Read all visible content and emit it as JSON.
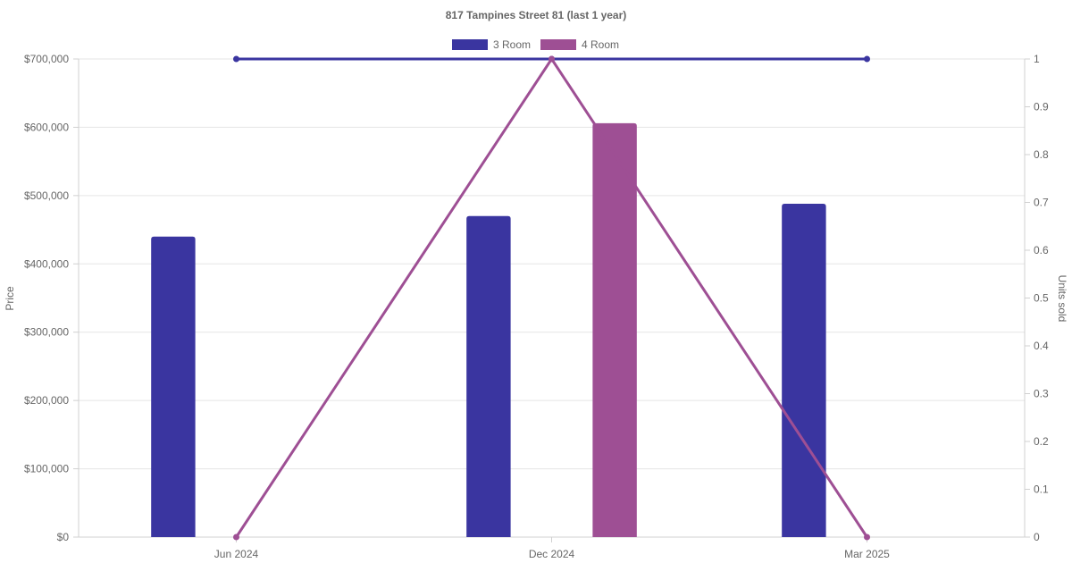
{
  "chart_data": {
    "type": "bar",
    "title": "817 Tampines Street 81 (last 1 year)",
    "categories": [
      "Jun 2024",
      "Dec 2024",
      "Mar 2025"
    ],
    "y_left": {
      "label": "Price",
      "min": 0,
      "max": 700000,
      "ticks": [
        "$0",
        "$100,000",
        "$200,000",
        "$300,000",
        "$400,000",
        "$500,000",
        "$600,000",
        "$700,000"
      ]
    },
    "y_right": {
      "label": "Units sold",
      "min": 0,
      "max": 1,
      "ticks": [
        "0",
        "0.1",
        "0.2",
        "0.3",
        "0.4",
        "0.5",
        "0.6",
        "0.7",
        "0.8",
        "0.9",
        "1"
      ]
    },
    "series": [
      {
        "name": "3 Room",
        "color": "#3a35a0",
        "price": [
          440000,
          470000,
          488000
        ],
        "units": [
          1,
          1,
          1
        ]
      },
      {
        "name": "4 Room",
        "color": "#9e4f94",
        "price": [
          null,
          606000,
          null
        ],
        "units": [
          0,
          1,
          0
        ]
      }
    ],
    "legend_position": "top-center",
    "grid": true
  }
}
